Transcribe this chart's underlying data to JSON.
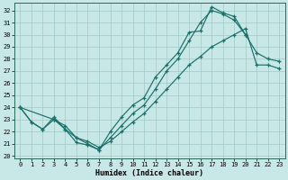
{
  "xlabel": "Humidex (Indice chaleur)",
  "bg_color": "#c8e8e8",
  "grid_color": "#a0c8c8",
  "line_color": "#1a7068",
  "xlim": [
    -0.5,
    23.5
  ],
  "ylim": [
    19.8,
    32.6
  ],
  "yticks": [
    20,
    21,
    22,
    23,
    24,
    25,
    26,
    27,
    28,
    29,
    30,
    31,
    32
  ],
  "xticks": [
    0,
    1,
    2,
    3,
    4,
    5,
    6,
    7,
    8,
    9,
    10,
    11,
    12,
    13,
    14,
    15,
    16,
    17,
    18,
    19,
    20,
    21,
    22,
    23
  ],
  "curve_a_x": [
    0,
    1,
    2,
    3,
    4,
    5,
    6,
    7,
    8,
    9,
    10,
    11,
    12,
    13,
    14,
    15,
    16,
    17,
    18,
    19,
    20
  ],
  "curve_a_y": [
    24.0,
    22.8,
    22.2,
    23.2,
    22.2,
    21.1,
    20.9,
    20.5,
    22.0,
    23.2,
    24.2,
    24.8,
    26.5,
    27.5,
    28.5,
    30.2,
    30.3,
    32.3,
    31.8,
    31.5,
    30.0
  ],
  "curve_b_x": [
    0,
    3,
    4,
    5,
    6,
    7,
    8,
    9,
    10,
    11,
    12,
    13,
    14,
    15,
    16,
    17,
    18,
    19,
    20,
    21,
    22,
    23
  ],
  "curve_b_y": [
    24.0,
    23.0,
    22.2,
    21.5,
    21.0,
    20.5,
    21.5,
    22.5,
    23.5,
    24.2,
    25.5,
    27.0,
    28.0,
    29.5,
    31.0,
    32.0,
    31.7,
    31.2,
    30.0,
    28.5,
    28.0,
    27.8
  ],
  "curve_c_x": [
    0,
    1,
    2,
    3,
    4,
    5,
    6,
    7,
    8,
    9,
    10,
    11,
    12,
    13,
    14,
    15,
    16,
    17,
    18,
    19,
    20,
    21,
    22,
    23
  ],
  "curve_c_y": [
    24.0,
    22.8,
    22.2,
    23.0,
    22.5,
    21.5,
    21.2,
    20.7,
    21.2,
    22.0,
    22.8,
    23.5,
    24.5,
    25.5,
    26.5,
    27.5,
    28.2,
    29.0,
    29.5,
    30.0,
    30.5,
    27.5,
    27.5,
    27.2
  ]
}
